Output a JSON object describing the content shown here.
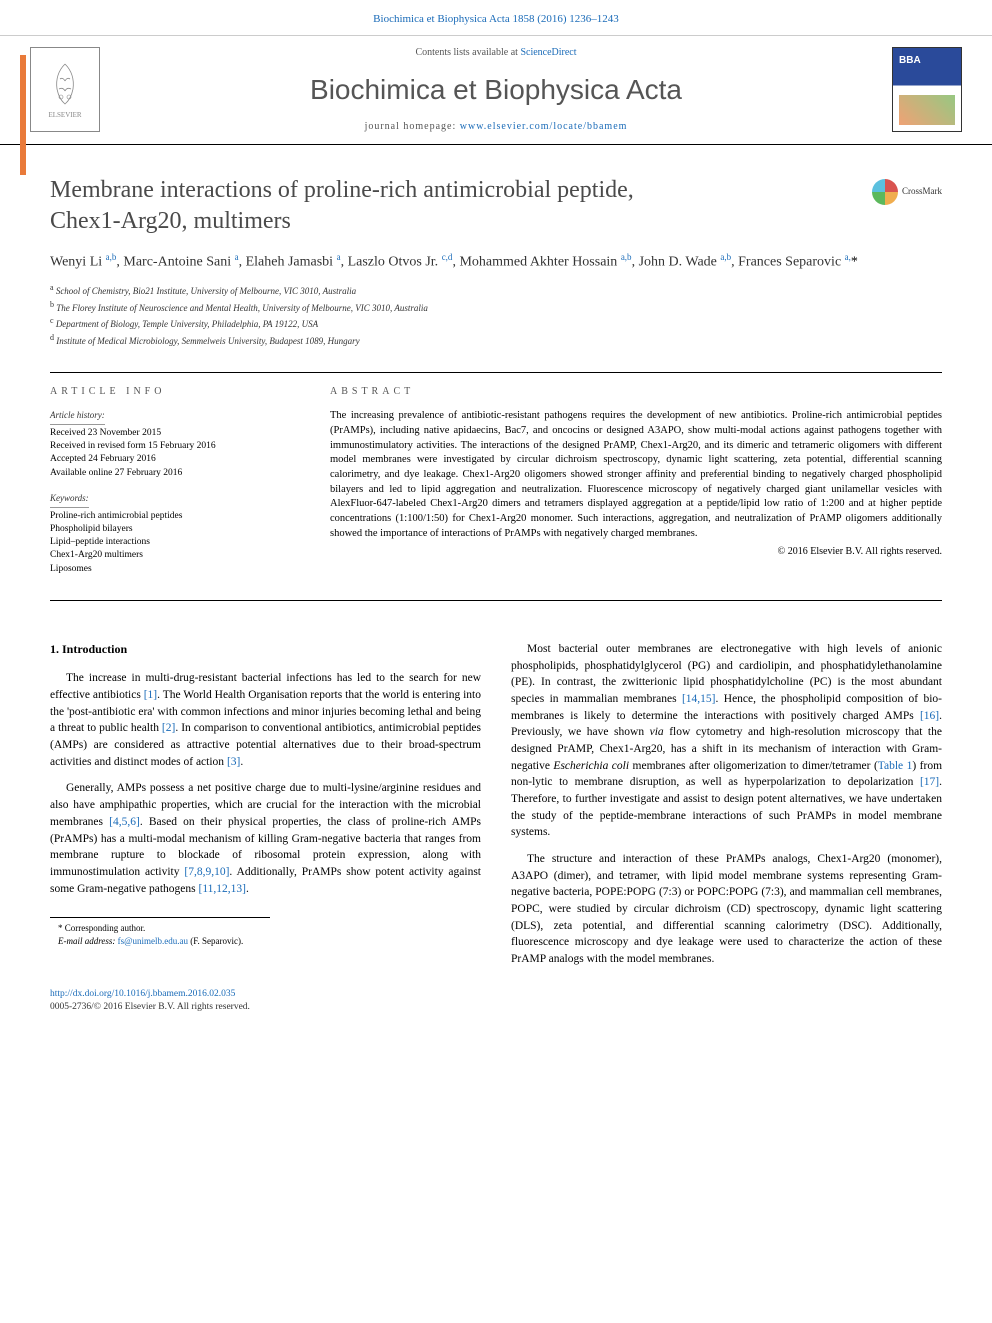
{
  "header_link": "Biochimica et Biophysica Acta 1858 (2016) 1236–1243",
  "contents_prefix": "Contents lists available at ",
  "contents_link": "ScienceDirect",
  "journal_name": "Biochimica et Biophysica Acta",
  "homepage_prefix": "journal homepage: ",
  "homepage_link": "www.elsevier.com/locate/bbamem",
  "elsevier_label": "ELSEVIER",
  "title_line1": "Membrane interactions of proline-rich antimicrobial peptide,",
  "title_line2": "Chex1-Arg20, multimers",
  "crossmark": "CrossMark",
  "authors_html": "Wenyi Li <sup>a,b</sup>, Marc-Antoine Sani <sup>a</sup>, Elaheh Jamasbi <sup>a</sup>, Laszlo Otvos Jr. <sup>c,d</sup>, Mohammed Akhter Hossain <sup>a,b</sup>, John D. Wade <sup>a,b</sup>, Frances Separovic <sup>a,</sup><span class='corr'>*</span>",
  "aff_a": "School of Chemistry, Bio21 Institute, University of Melbourne, VIC 3010, Australia",
  "aff_b": "The Florey Institute of Neuroscience and Mental Health, University of Melbourne, VIC 3010, Australia",
  "aff_c": "Department of Biology, Temple University, Philadelphia, PA 19122, USA",
  "aff_d": "Institute of Medical Microbiology, Semmelweis University, Budapest 1089, Hungary",
  "info_heading": "ARTICLE INFO",
  "history_label": "Article history:",
  "history": [
    "Received 23 November 2015",
    "Received in revised form 15 February 2016",
    "Accepted 24 February 2016",
    "Available online 27 February 2016"
  ],
  "keywords_label": "Keywords:",
  "keywords": [
    "Proline-rich antimicrobial peptides",
    "Phospholipid bilayers",
    "Lipid–peptide interactions",
    "Chex1-Arg20 multimers",
    "Liposomes"
  ],
  "abstract_heading": "ABSTRACT",
  "abstract": "The increasing prevalence of antibiotic-resistant pathogens requires the development of new antibiotics. Proline-rich antimicrobial peptides (PrAMPs), including native apidaecins, Bac7, and oncocins or designed A3APO, show multi-modal actions against pathogens together with immunostimulatory activities. The interactions of the designed PrAMP, Chex1-Arg20, and its dimeric and tetrameric oligomers with different model membranes were investigated by circular dichroism spectroscopy, dynamic light scattering, zeta potential, differential scanning calorimetry, and dye leakage. Chex1-Arg20 oligomers showed stronger affinity and preferential binding to negatively charged phospholipid bilayers and led to lipid aggregation and neutralization. Fluorescence microscopy of negatively charged giant unilamellar vesicles with AlexFluor-647-labeled Chex1-Arg20 dimers and tetramers displayed aggregation at a peptide/lipid low ratio of 1:200 and at higher peptide concentrations (1:100/1:50) for Chex1-Arg20 monomer. Such interactions, aggregation, and neutralization of PrAMP oligomers additionally showed the importance of interactions of PrAMPs with negatively charged membranes.",
  "copyright": "© 2016 Elsevier B.V. All rights reserved.",
  "section1": "1. Introduction",
  "p1": "The increase in multi-drug-resistant bacterial infections has led to the search for new effective antibiotics [1]. The World Health Organisation reports that the world is entering into the 'post-antibiotic era' with common infections and minor injuries becoming lethal and being a threat to public health [2]. In comparison to conventional antibiotics, antimicrobial peptides (AMPs) are considered as attractive potential alternatives due to their broad-spectrum activities and distinct modes of action [3].",
  "p2": "Generally, AMPs possess a net positive charge due to multi-lysine/arginine residues and also have amphipathic properties, which are crucial for the interaction with the microbial membranes [4,5,6]. Based on their physical properties, the class of proline-rich AMPs (PrAMPs) has a multi-modal mechanism of killing Gram-negative bacteria that ranges from membrane rupture to blockade of ribosomal protein expression, along with immunostimulation activity [7,8,9,10]. Additionally, PrAMPs show potent activity against some Gram-negative pathogens [11,12,13].",
  "p3": "Most bacterial outer membranes are electronegative with high levels of anionic phospholipids, phosphatidylglycerol (PG) and cardiolipin, and phosphatidylethanolamine (PE). In contrast, the zwitterionic lipid phosphatidylcholine (PC) is the most abundant species in mammalian membranes [14,15]. Hence, the phospholipid composition of bio-membranes is likely to determine the interactions with positively charged AMPs [16]. Previously, we have shown via flow cytometry and high-resolution microscopy that the designed PrAMP, Chex1-Arg20, has a shift in its mechanism of interaction with Gram-negative Escherichia coli membranes after oligomerization to dimer/tetramer (Table 1) from non-lytic to membrane disruption, as well as hyperpolarization to depolarization [17]. Therefore, to further investigate and assist to design potent alternatives, we have undertaken the study of the peptide-membrane interactions of such PrAMPs in model membrane systems.",
  "p4": "The structure and interaction of these PrAMPs analogs, Chex1-Arg20 (monomer), A3APO (dimer), and tetramer, with lipid model membrane systems representing Gram-negative bacteria, POPE:POPG (7:3) or POPC:POPG (7:3), and mammalian cell membranes, POPC, were studied by circular dichroism (CD) spectroscopy, dynamic light scattering (DLS), zeta potential, and differential scanning calorimetry (DSC). Additionally, fluorescence microscopy and dye leakage were used to characterize the action of these PrAMP analogs with the model membranes.",
  "corr_label": "* Corresponding author.",
  "corr_email_label": "E-mail address:",
  "corr_email": "fs@unimelb.edu.au",
  "corr_name": "(F. Separovic).",
  "doi": "http://dx.doi.org/10.1016/j.bbamem.2016.02.035",
  "issn": "0005-2736/© 2016 Elsevier B.V. All rights reserved.",
  "colors": {
    "link": "#1a6bb8",
    "accent": "#e97a3a",
    "heading": "#4a4a4a"
  }
}
